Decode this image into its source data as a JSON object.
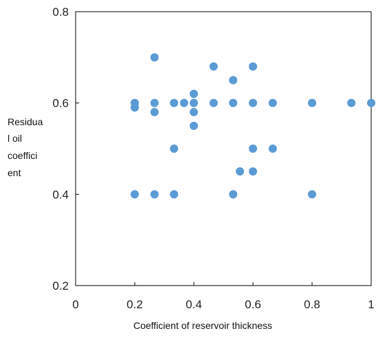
{
  "chart_data": {
    "type": "scatter",
    "xlabel": "Coefficient of reservoir thickness",
    "ylabel_lines": [
      "Residua",
      "l oil",
      "coeffici",
      "ent"
    ],
    "xlim": [
      0,
      1
    ],
    "ylim": [
      0.2,
      0.8
    ],
    "xticks": [
      0,
      0.2,
      0.4,
      0.6,
      0.8,
      1
    ],
    "xtick_labels": [
      "0",
      "0.2",
      "0.4",
      "0.6",
      "0.8",
      "1"
    ],
    "yticks": [
      0.2,
      0.4,
      0.6,
      0.8
    ],
    "ytick_labels": [
      "0.2",
      "0.4",
      "0.6",
      "0.8"
    ],
    "grid": false,
    "marker_color": "#5b9bd5",
    "series": [
      {
        "points": [
          [
            0.2,
            0.6
          ],
          [
            0.2,
            0.59
          ],
          [
            0.2,
            0.4
          ],
          [
            0.267,
            0.7
          ],
          [
            0.267,
            0.6
          ],
          [
            0.267,
            0.58
          ],
          [
            0.267,
            0.4
          ],
          [
            0.333,
            0.6
          ],
          [
            0.333,
            0.5
          ],
          [
            0.333,
            0.4
          ],
          [
            0.367,
            0.6
          ],
          [
            0.4,
            0.62
          ],
          [
            0.4,
            0.6
          ],
          [
            0.4,
            0.58
          ],
          [
            0.4,
            0.55
          ],
          [
            0.467,
            0.68
          ],
          [
            0.467,
            0.6
          ],
          [
            0.533,
            0.65
          ],
          [
            0.533,
            0.6
          ],
          [
            0.533,
            0.4
          ],
          [
            0.556,
            0.45
          ],
          [
            0.6,
            0.68
          ],
          [
            0.6,
            0.6
          ],
          [
            0.6,
            0.5
          ],
          [
            0.6,
            0.45
          ],
          [
            0.667,
            0.6
          ],
          [
            0.667,
            0.5
          ],
          [
            0.8,
            0.6
          ],
          [
            0.8,
            0.4
          ],
          [
            0.933,
            0.6
          ],
          [
            1.0,
            0.6
          ]
        ]
      }
    ]
  }
}
